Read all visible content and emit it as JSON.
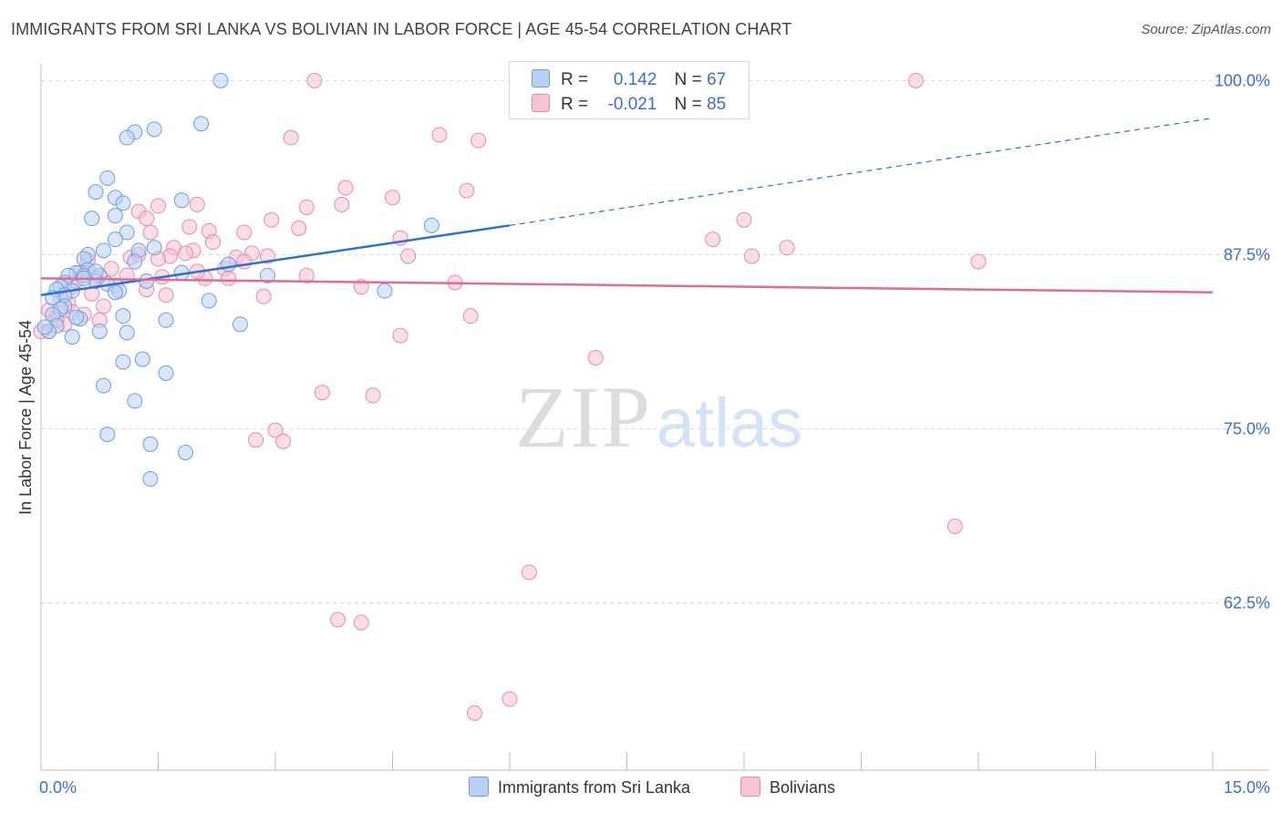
{
  "title": "IMMIGRANTS FROM SRI LANKA VS BOLIVIAN IN LABOR FORCE | AGE 45-54 CORRELATION CHART",
  "source": "Source: ZipAtlas.com",
  "watermark": {
    "zip": "ZIP",
    "atlas": "atlas"
  },
  "legend": {
    "r_label": "R =",
    "n_label": "N =",
    "series": [
      {
        "r": "0.142",
        "n": "67"
      },
      {
        "r": "-0.021",
        "n": "85"
      }
    ]
  },
  "bottom_legend": [
    "Immigrants from Sri Lanka",
    "Bolivians"
  ],
  "colors": {
    "blue_fill": "#b8d1f3",
    "blue_stroke": "#6f9be0",
    "blue_line": "#2f6fce",
    "pink_fill": "#f6c3d4",
    "pink_stroke": "#e88aaa",
    "pink_line": "#e36a94",
    "axis_text": "#3a6fd0",
    "grid": "#d8d8d8"
  },
  "chart_data": {
    "type": "scatter",
    "title": "IMMIGRANTS FROM SRI LANKA VS BOLIVIAN IN LABOR FORCE | AGE 45-54 CORRELATION CHART",
    "ylabel": "In Labor Force | Age 45-54",
    "xlabel": "",
    "xlim": [
      0,
      15
    ],
    "ylim": [
      50.5,
      101.2
    ],
    "x_tick_labels": [
      "0.0%",
      "15.0%"
    ],
    "y_ticks": [
      62.5,
      75.0,
      87.5,
      100.0
    ],
    "y_tick_labels": [
      "62.5%",
      "75.0%",
      "87.5%",
      "100.0%"
    ],
    "series": [
      {
        "name": "Immigrants from Sri Lanka",
        "r": 0.142,
        "n": 67,
        "trend": {
          "x0": 0.0,
          "y0": 84.6,
          "x1": 6.0,
          "y1": 89.6,
          "x_dash_end": 15.0,
          "y_dash_end": 97.3
        },
        "points": [
          [
            2.3,
            100.0
          ],
          [
            1.2,
            96.3
          ],
          [
            1.45,
            96.5
          ],
          [
            2.05,
            96.9
          ],
          [
            1.1,
            95.9
          ],
          [
            0.85,
            93.0
          ],
          [
            0.7,
            92.0
          ],
          [
            0.95,
            91.6
          ],
          [
            1.05,
            91.2
          ],
          [
            1.8,
            91.4
          ],
          [
            0.65,
            90.1
          ],
          [
            0.95,
            90.3
          ],
          [
            1.1,
            89.1
          ],
          [
            0.95,
            88.6
          ],
          [
            0.8,
            87.8
          ],
          [
            1.25,
            87.8
          ],
          [
            1.2,
            87.0
          ],
          [
            0.6,
            87.5
          ],
          [
            0.55,
            87.2
          ],
          [
            0.6,
            86.4
          ],
          [
            0.45,
            86.2
          ],
          [
            0.35,
            86.0
          ],
          [
            0.55,
            86.0
          ],
          [
            0.75,
            86.0
          ],
          [
            0.3,
            85.5
          ],
          [
            0.7,
            85.6
          ],
          [
            0.85,
            85.4
          ],
          [
            0.25,
            85.2
          ],
          [
            0.2,
            85.0
          ],
          [
            0.4,
            84.9
          ],
          [
            0.3,
            84.6
          ],
          [
            0.15,
            84.4
          ],
          [
            0.3,
            83.8
          ],
          [
            0.25,
            83.6
          ],
          [
            0.15,
            83.2
          ],
          [
            0.5,
            82.9
          ],
          [
            0.45,
            83.0
          ],
          [
            1.05,
            83.1
          ],
          [
            1.6,
            82.8
          ],
          [
            2.55,
            82.5
          ],
          [
            0.2,
            82.4
          ],
          [
            0.1,
            82.0
          ],
          [
            0.75,
            82.0
          ],
          [
            1.1,
            81.9
          ],
          [
            0.4,
            81.6
          ],
          [
            1.35,
            85.6
          ],
          [
            1.0,
            84.9
          ],
          [
            2.15,
            84.2
          ],
          [
            0.95,
            84.8
          ],
          [
            2.4,
            86.8
          ],
          [
            2.9,
            86.0
          ],
          [
            1.8,
            86.2
          ],
          [
            4.4,
            84.9
          ],
          [
            5.0,
            89.6
          ],
          [
            1.05,
            79.8
          ],
          [
            1.3,
            80.0
          ],
          [
            1.6,
            79.0
          ],
          [
            0.8,
            78.1
          ],
          [
            1.2,
            77.0
          ],
          [
            0.85,
            74.6
          ],
          [
            1.4,
            73.9
          ],
          [
            1.85,
            73.3
          ],
          [
            1.4,
            71.4
          ],
          [
            0.55,
            85.8
          ],
          [
            0.7,
            86.3
          ],
          [
            1.45,
            88.0
          ],
          [
            0.05,
            82.3
          ]
        ]
      },
      {
        "name": "Bolivians",
        "r": -0.021,
        "n": 85,
        "trend": {
          "x0": 0.0,
          "y0": 85.8,
          "x1": 15.0,
          "y1": 84.8
        },
        "points": [
          [
            3.5,
            100.0
          ],
          [
            11.2,
            100.0
          ],
          [
            5.1,
            96.1
          ],
          [
            3.2,
            95.9
          ],
          [
            5.6,
            95.7
          ],
          [
            3.9,
            92.3
          ],
          [
            4.5,
            91.6
          ],
          [
            5.45,
            92.1
          ],
          [
            3.85,
            91.1
          ],
          [
            3.4,
            90.9
          ],
          [
            2.0,
            91.1
          ],
          [
            1.5,
            91.0
          ],
          [
            1.25,
            90.6
          ],
          [
            1.35,
            90.1
          ],
          [
            2.95,
            90.0
          ],
          [
            3.3,
            89.4
          ],
          [
            9.0,
            90.0
          ],
          [
            1.9,
            89.5
          ],
          [
            2.15,
            89.2
          ],
          [
            1.4,
            89.1
          ],
          [
            2.6,
            89.1
          ],
          [
            2.2,
            88.4
          ],
          [
            4.6,
            88.7
          ],
          [
            8.6,
            88.6
          ],
          [
            9.55,
            88.0
          ],
          [
            1.7,
            88.0
          ],
          [
            1.95,
            87.8
          ],
          [
            1.85,
            87.6
          ],
          [
            1.65,
            87.4
          ],
          [
            1.5,
            87.2
          ],
          [
            1.15,
            87.3
          ],
          [
            1.25,
            87.5
          ],
          [
            2.5,
            87.3
          ],
          [
            2.9,
            87.4
          ],
          [
            2.7,
            87.6
          ],
          [
            2.6,
            87.0
          ],
          [
            2.35,
            86.5
          ],
          [
            3.4,
            86.0
          ],
          [
            4.7,
            87.4
          ],
          [
            9.1,
            87.4
          ],
          [
            12.0,
            87.0
          ],
          [
            0.6,
            87.1
          ],
          [
            0.9,
            86.5
          ],
          [
            0.5,
            86.2
          ],
          [
            0.7,
            85.8
          ],
          [
            2.1,
            85.8
          ],
          [
            2.4,
            85.8
          ],
          [
            0.4,
            85.2
          ],
          [
            1.35,
            85.0
          ],
          [
            1.6,
            84.6
          ],
          [
            2.85,
            84.5
          ],
          [
            4.1,
            85.2
          ],
          [
            5.3,
            85.5
          ],
          [
            0.35,
            84.0
          ],
          [
            0.8,
            83.8
          ],
          [
            0.1,
            83.5
          ],
          [
            0.55,
            83.2
          ],
          [
            0.2,
            83.0
          ],
          [
            0.3,
            82.5
          ],
          [
            0.1,
            82.0
          ],
          [
            0.0,
            82.0
          ],
          [
            5.5,
            83.1
          ],
          [
            4.6,
            81.7
          ],
          [
            7.1,
            80.1
          ],
          [
            3.6,
            77.6
          ],
          [
            4.25,
            77.4
          ],
          [
            3.0,
            74.9
          ],
          [
            2.75,
            74.2
          ],
          [
            3.1,
            74.1
          ],
          [
            11.7,
            68.0
          ],
          [
            6.25,
            64.7
          ],
          [
            3.8,
            61.3
          ],
          [
            4.1,
            61.1
          ],
          [
            6.0,
            55.6
          ],
          [
            5.55,
            54.6
          ],
          [
            0.45,
            85.6
          ],
          [
            0.65,
            84.7
          ],
          [
            0.25,
            84.3
          ],
          [
            1.1,
            86.0
          ],
          [
            0.4,
            83.4
          ],
          [
            0.75,
            82.8
          ],
          [
            1.55,
            85.9
          ],
          [
            2.0,
            86.3
          ],
          [
            0.95,
            85.3
          ],
          [
            0.2,
            82.8
          ]
        ]
      }
    ]
  }
}
